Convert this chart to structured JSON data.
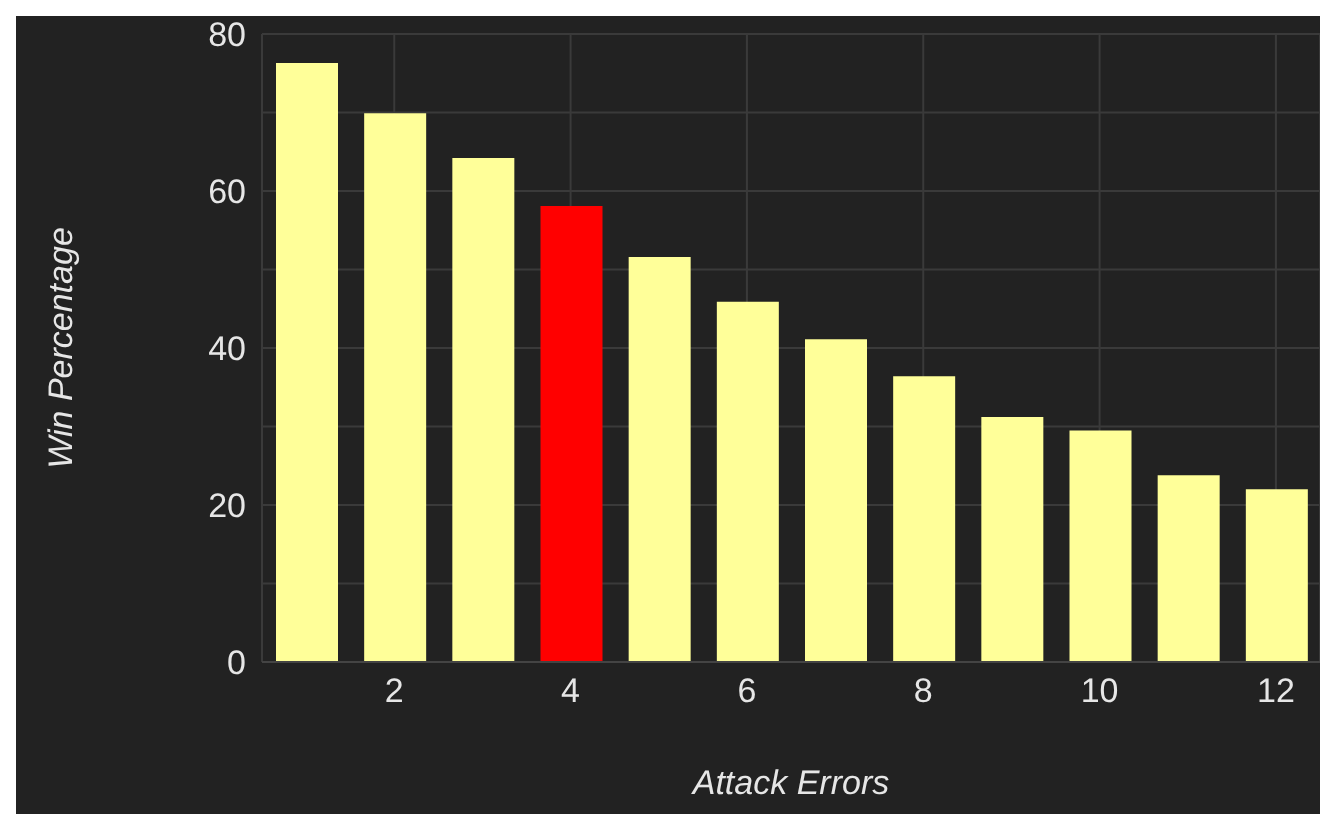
{
  "chart_data": {
    "type": "bar",
    "xlabel": "Attack Errors",
    "ylabel": "Win Percentage",
    "x": [
      1,
      2,
      3,
      4,
      5,
      6,
      7,
      8,
      9,
      10,
      11,
      12
    ],
    "values": [
      76.3,
      69.9,
      64.2,
      58.1,
      51.6,
      45.9,
      41.1,
      36.4,
      31.2,
      29.5,
      23.8,
      22.0
    ],
    "colors": [
      "#ffff99",
      "#ffff99",
      "#ffff99",
      "#ff0000",
      "#ffff99",
      "#ffff99",
      "#ffff99",
      "#ffff99",
      "#ffff99",
      "#ffff99",
      "#ffff99",
      "#ffff99"
    ],
    "xlim": [
      0.5,
      12.5
    ],
    "xticks": [
      2,
      4,
      6,
      8,
      10,
      12
    ],
    "ylim": [
      0,
      80
    ],
    "yticks": [
      0,
      {
        "value": 10,
        "label": null
      },
      20,
      {
        "value": 30,
        "label": null
      },
      40,
      {
        "value": 50,
        "label": null
      },
      60,
      {
        "value": 70,
        "label": null
      },
      80
    ],
    "grid": true,
    "legend": false
  }
}
